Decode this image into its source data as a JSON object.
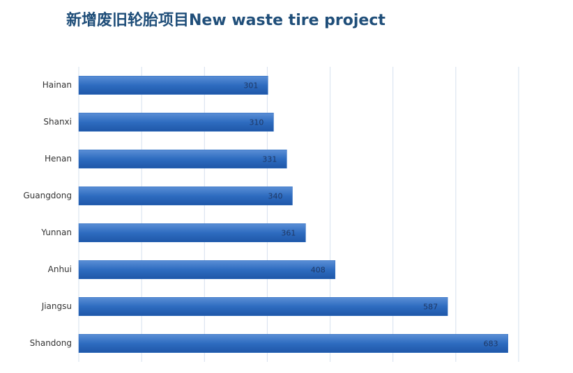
{
  "chart_data": {
    "type": "bar",
    "orientation": "horizontal",
    "title": "新增废旧轮胎项目New waste tire project",
    "categories": [
      "Hainan",
      "Shanxi",
      "Henan",
      "Guangdong",
      "Yunnan",
      "Anhui",
      "Jiangsu",
      "Shandong"
    ],
    "values": [
      301,
      310,
      331,
      340,
      361,
      408,
      587,
      683
    ],
    "color": "#2e6cc0",
    "xlim": [
      0,
      700
    ],
    "xticks": [
      0,
      100,
      200,
      300,
      400,
      500,
      600,
      700
    ],
    "grid": true
  }
}
